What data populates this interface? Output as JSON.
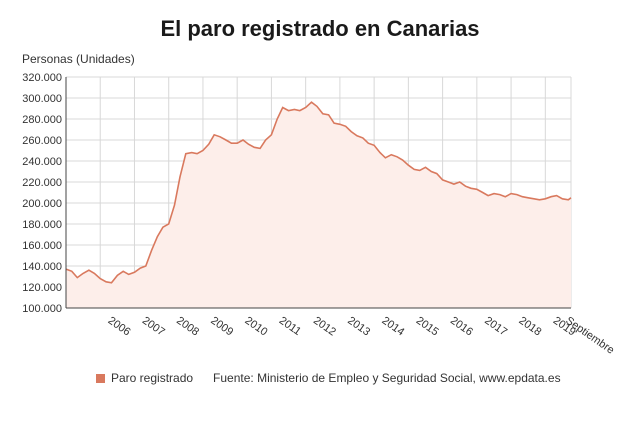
{
  "page": {
    "title": "El paro registrado en Canarias",
    "source": "Fuente: Ministerio de Empleo y Seguridad Social, www.epdata.es"
  },
  "colors": {
    "series_line": "#d9795e",
    "series_fill": "#fdeeea",
    "legend_swatch": "#d9795e",
    "grid": "#d8d8d8",
    "axis": "#444444"
  },
  "chart_data": {
    "type": "area",
    "title": "El paro registrado en Canarias",
    "xlabel": "",
    "ylabel": "Personas (Unidades)",
    "ylim": [
      100000,
      320000
    ],
    "yticks": [
      "100.000",
      "120.000",
      "140.000",
      "160.000",
      "180.000",
      "200.000",
      "220.000",
      "240.000",
      "260.000",
      "280.000",
      "300.000",
      "320.000"
    ],
    "xticks": [
      "2006",
      "2007",
      "2008",
      "2009",
      "2010",
      "2011",
      "2012",
      "2013",
      "2014",
      "2015",
      "2016",
      "2017",
      "2018",
      "2019",
      "Septiembre"
    ],
    "x_range": [
      2005,
      2019.75
    ],
    "grid": true,
    "legend_position": "bottom-left",
    "series": [
      {
        "name": "Paro registrado",
        "x": [
          2005.0,
          2005.17,
          2005.33,
          2005.5,
          2005.67,
          2005.83,
          2006.0,
          2006.17,
          2006.33,
          2006.5,
          2006.67,
          2006.83,
          2007.0,
          2007.17,
          2007.33,
          2007.5,
          2007.67,
          2007.83,
          2008.0,
          2008.17,
          2008.33,
          2008.5,
          2008.67,
          2008.83,
          2009.0,
          2009.17,
          2009.33,
          2009.5,
          2009.67,
          2009.83,
          2010.0,
          2010.17,
          2010.33,
          2010.5,
          2010.67,
          2010.83,
          2011.0,
          2011.17,
          2011.33,
          2011.5,
          2011.67,
          2011.83,
          2012.0,
          2012.17,
          2012.33,
          2012.5,
          2012.67,
          2012.83,
          2013.0,
          2013.17,
          2013.33,
          2013.5,
          2013.67,
          2013.83,
          2014.0,
          2014.17,
          2014.33,
          2014.5,
          2014.67,
          2014.83,
          2015.0,
          2015.17,
          2015.33,
          2015.5,
          2015.67,
          2015.83,
          2016.0,
          2016.17,
          2016.33,
          2016.5,
          2016.67,
          2016.83,
          2017.0,
          2017.17,
          2017.33,
          2017.5,
          2017.67,
          2017.83,
          2018.0,
          2018.17,
          2018.33,
          2018.5,
          2018.67,
          2018.83,
          2019.0,
          2019.17,
          2019.33,
          2019.5,
          2019.67,
          2019.75
        ],
        "values": [
          137000,
          135000,
          129000,
          133000,
          136000,
          133000,
          128000,
          125000,
          124000,
          131000,
          135000,
          132000,
          134000,
          138000,
          140000,
          155000,
          168000,
          177000,
          180000,
          198000,
          225000,
          247000,
          248000,
          247000,
          250000,
          256000,
          265000,
          263000,
          260000,
          257000,
          257000,
          260000,
          256000,
          253000,
          252000,
          260000,
          265000,
          280000,
          291000,
          288000,
          289000,
          288000,
          291000,
          296000,
          292000,
          285000,
          284000,
          276000,
          275000,
          273000,
          268000,
          264000,
          262000,
          257000,
          255000,
          248000,
          243000,
          246000,
          244000,
          241000,
          236000,
          232000,
          231000,
          234000,
          230000,
          228000,
          222000,
          220000,
          218000,
          220000,
          216000,
          214000,
          213000,
          210000,
          207000,
          209000,
          208000,
          206000,
          209000,
          208000,
          206000,
          205000,
          204000,
          203000,
          204000,
          206000,
          207000,
          204000,
          203000,
          205000
        ]
      }
    ]
  }
}
